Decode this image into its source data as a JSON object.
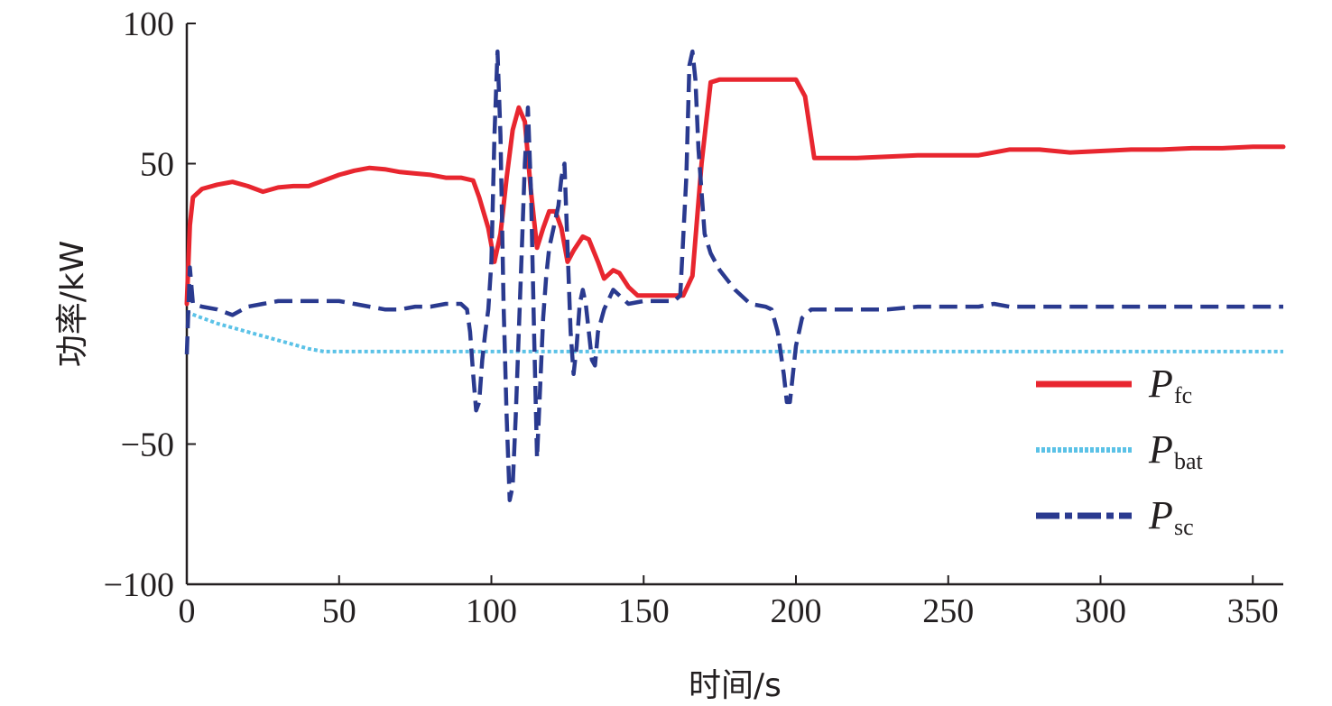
{
  "chart_data": {
    "type": "line",
    "xlabel": "时间/s",
    "ylabel": "功率/kW",
    "xlim": [
      0,
      360
    ],
    "ylim": [
      -100,
      100
    ],
    "x_ticks": [
      0,
      50,
      100,
      150,
      200,
      250,
      300,
      350
    ],
    "y_ticks": [
      100,
      50,
      -50,
      -100
    ],
    "y_tick_labels": [
      "100",
      "50",
      "−50",
      "−100"
    ],
    "grid": false,
    "legend_position": "bottom-right",
    "series": [
      {
        "name": "P",
        "subscript": "fc",
        "color": "#e8262f",
        "style": "solid",
        "x": [
          0,
          1,
          2,
          5,
          10,
          15,
          20,
          25,
          30,
          35,
          40,
          45,
          50,
          55,
          60,
          65,
          70,
          75,
          80,
          85,
          90,
          94,
          96,
          99,
          101,
          103,
          105,
          107,
          109,
          111,
          113,
          115,
          117,
          119,
          121,
          123,
          125,
          127,
          130,
          132,
          135,
          137,
          140,
          142,
          145,
          148,
          150,
          155,
          160,
          163,
          166,
          169,
          172,
          175,
          180,
          190,
          200,
          203,
          206,
          210,
          220,
          230,
          240,
          250,
          260,
          270,
          280,
          290,
          300,
          310,
          320,
          330,
          340,
          350,
          360
        ],
        "values": [
          0,
          28,
          38,
          41,
          42.5,
          43.5,
          42,
          40,
          41.5,
          42,
          42,
          44,
          46,
          47.5,
          48.5,
          48,
          47,
          46.5,
          46,
          45,
          45,
          44,
          38,
          27,
          15,
          25,
          45,
          62,
          70,
          65,
          40,
          20,
          27,
          33,
          33,
          27,
          15,
          19,
          24,
          23,
          15,
          9,
          12,
          11,
          6,
          3,
          3,
          3,
          3,
          3,
          10,
          50,
          79,
          80,
          80,
          80,
          80,
          74,
          52,
          52,
          52,
          52.5,
          53,
          53,
          53,
          55,
          55,
          54,
          54.5,
          55,
          55,
          55.5,
          55.5,
          56,
          56
        ]
      },
      {
        "name": "P",
        "subscript": "bat",
        "color": "#5bc2e7",
        "style": "dotted",
        "x": [
          0,
          5,
          10,
          20,
          30,
          40,
          45,
          100,
          200,
          300,
          360
        ],
        "values": [
          -3,
          -5,
          -7,
          -10,
          -13,
          -16,
          -17,
          -17,
          -17,
          -17,
          -17
        ]
      },
      {
        "name": "P",
        "subscript": "sc",
        "color": "#2a3a8f",
        "style": "dashed",
        "x": [
          0,
          1,
          2,
          5,
          10,
          15,
          20,
          25,
          30,
          40,
          50,
          55,
          60,
          65,
          70,
          75,
          80,
          85,
          90,
          92,
          93,
          94,
          95,
          96,
          97,
          98,
          99,
          100,
          101,
          102,
          103,
          104,
          105,
          106,
          107,
          108,
          109,
          110,
          111,
          112,
          113,
          114,
          115,
          116,
          117,
          118,
          119,
          120,
          121,
          122,
          123,
          124,
          125,
          126,
          127,
          128,
          129,
          130,
          131,
          132,
          133,
          134,
          135,
          137,
          140,
          145,
          150,
          155,
          160,
          162,
          164,
          165,
          166,
          167,
          168,
          170,
          172,
          175,
          180,
          185,
          190,
          192,
          194,
          196,
          197,
          198,
          200,
          202,
          205,
          210,
          220,
          230,
          240,
          250,
          260,
          265,
          270,
          280,
          290,
          300,
          310,
          320,
          330,
          340,
          350,
          360
        ],
        "values": [
          -18,
          13,
          0,
          -1,
          -2,
          -4,
          -1,
          0,
          1,
          1,
          1,
          0,
          -1,
          -2,
          -2,
          -1,
          -1,
          0,
          0,
          -2,
          -10,
          -25,
          -38,
          -35,
          -20,
          -10,
          -2,
          15,
          60,
          90,
          60,
          0,
          -40,
          -70,
          -65,
          -40,
          -10,
          20,
          50,
          70,
          40,
          -10,
          -55,
          -30,
          -5,
          10,
          20,
          25,
          30,
          35,
          45,
          50,
          20,
          -10,
          -25,
          -15,
          0,
          5,
          0,
          -10,
          -20,
          -22,
          -10,
          -2,
          5,
          0,
          1,
          1,
          1,
          3,
          45,
          85,
          90,
          80,
          55,
          25,
          18,
          12,
          5,
          0,
          -1,
          -2,
          -10,
          -25,
          -35,
          -35,
          -15,
          -5,
          -2,
          -2,
          -2,
          -2,
          -1,
          -1,
          -1,
          0,
          -1,
          -1,
          -1,
          -1,
          -1,
          -1,
          -1,
          -1,
          -1,
          -1
        ]
      }
    ]
  }
}
